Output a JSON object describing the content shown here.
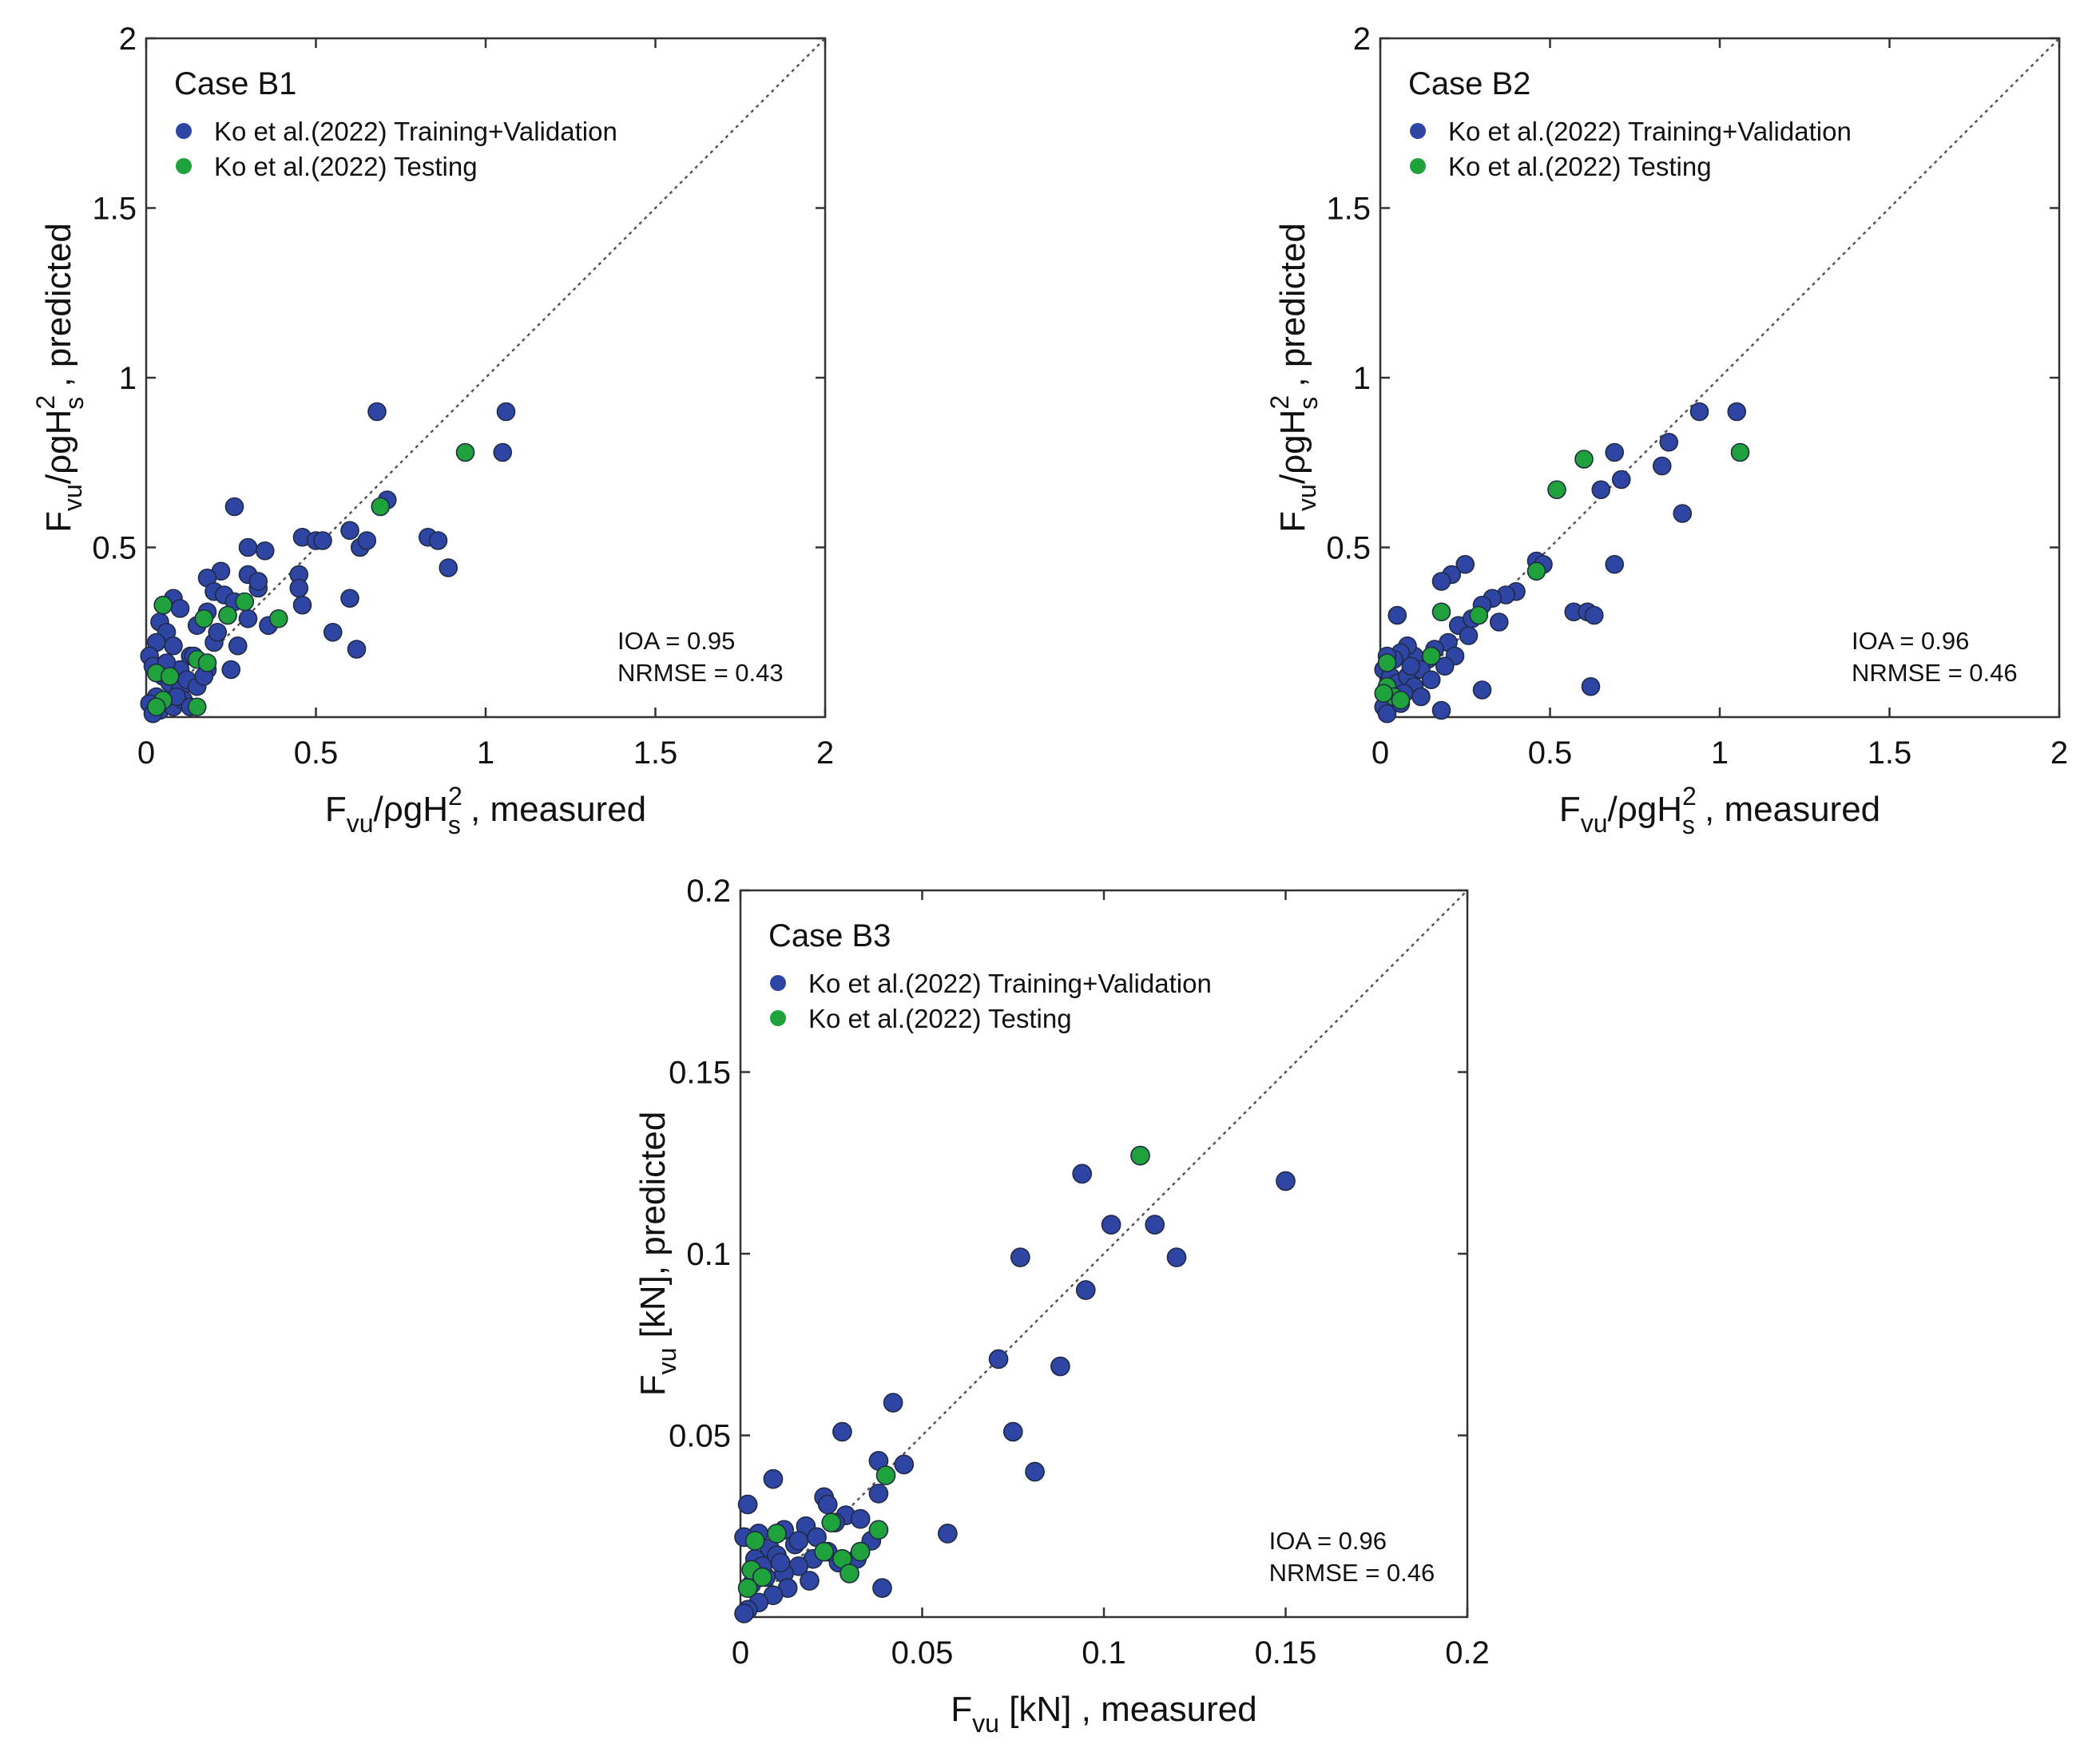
{
  "colors": {
    "training": "#2f45a3",
    "testing": "#1fa23c",
    "marker_edge": "#1f2a44",
    "axis": "#333333",
    "diagonal": "#555555"
  },
  "legend_labels": {
    "training": "Ko et al.(2022) Training+Validation",
    "testing": "Ko et al.(2022) Testing"
  },
  "chart_data": [
    {
      "type": "scatter",
      "title": "Case B1",
      "xlabel": {
        "main": "F",
        "sub": "vu",
        "mid": "/ρgH",
        "sup": "2",
        "sub2": "s",
        "tail": " , measured"
      },
      "ylabel": {
        "main": "F",
        "sub": "vu",
        "mid": "/ρgH",
        "sup": "2",
        "sub2": "s",
        "tail": " , predicted"
      },
      "xlim": [
        0,
        2
      ],
      "ylim": [
        0,
        2
      ],
      "xticks": [
        "0",
        "0.5",
        "1",
        "1.5",
        "2"
      ],
      "yticks": [
        "0.5",
        "1",
        "1.5",
        "2"
      ],
      "ytick_values": [
        0.5,
        1,
        1.5,
        2
      ],
      "xtick_values": [
        0,
        0.5,
        1,
        1.5,
        2
      ],
      "diagonal": true,
      "legend_position": "top-left",
      "stats": [
        "IOA = 0.95",
        "NRMSE = 0.43"
      ],
      "series": [
        {
          "name": "Ko et al.(2022) Training+Validation",
          "points": [
            [
              0.68,
              0.9
            ],
            [
              1.06,
              0.9
            ],
            [
              1.05,
              0.78
            ],
            [
              0.26,
              0.62
            ],
            [
              0.71,
              0.64
            ],
            [
              0.83,
              0.53
            ],
            [
              0.86,
              0.52
            ],
            [
              0.89,
              0.44
            ],
            [
              0.46,
              0.53
            ],
            [
              0.5,
              0.52
            ],
            [
              0.52,
              0.52
            ],
            [
              0.6,
              0.55
            ],
            [
              0.63,
              0.5
            ],
            [
              0.65,
              0.52
            ],
            [
              0.3,
              0.5
            ],
            [
              0.35,
              0.49
            ],
            [
              0.22,
              0.43
            ],
            [
              0.18,
              0.41
            ],
            [
              0.3,
              0.42
            ],
            [
              0.33,
              0.38
            ],
            [
              0.2,
              0.37
            ],
            [
              0.23,
              0.36
            ],
            [
              0.45,
              0.42
            ],
            [
              0.45,
              0.38
            ],
            [
              0.6,
              0.35
            ],
            [
              0.55,
              0.25
            ],
            [
              0.62,
              0.2
            ],
            [
              0.46,
              0.33
            ],
            [
              0.36,
              0.27
            ],
            [
              0.08,
              0.35
            ],
            [
              0.05,
              0.33
            ],
            [
              0.1,
              0.32
            ],
            [
              0.04,
              0.28
            ],
            [
              0.06,
              0.25
            ],
            [
              0.15,
              0.27
            ],
            [
              0.2,
              0.22
            ],
            [
              0.27,
              0.21
            ],
            [
              0.3,
              0.29
            ],
            [
              0.25,
              0.14
            ],
            [
              0.18,
              0.14
            ],
            [
              0.13,
              0.18
            ],
            [
              0.1,
              0.14
            ],
            [
              0.08,
              0.21
            ],
            [
              0.03,
              0.22
            ],
            [
              0.01,
              0.18
            ],
            [
              0.02,
              0.15
            ],
            [
              0.05,
              0.12
            ],
            [
              0.07,
              0.1
            ],
            [
              0.1,
              0.08
            ],
            [
              0.12,
              0.11
            ],
            [
              0.15,
              0.09
            ],
            [
              0.03,
              0.06
            ],
            [
              0.01,
              0.04
            ],
            [
              0.04,
              0.02
            ],
            [
              0.08,
              0.03
            ],
            [
              0.02,
              0.01
            ],
            [
              0.11,
              0.05
            ],
            [
              0.06,
              0.16
            ],
            [
              0.14,
              0.18
            ],
            [
              0.18,
              0.31
            ],
            [
              0.24,
              0.3
            ],
            [
              0.26,
              0.34
            ],
            [
              0.33,
              0.4
            ],
            [
              0.09,
              0.06
            ],
            [
              0.13,
              0.03
            ],
            [
              0.17,
              0.12
            ],
            [
              0.21,
              0.25
            ]
          ]
        },
        {
          "name": "Ko et al.(2022) Testing",
          "points": [
            [
              0.94,
              0.78
            ],
            [
              0.69,
              0.62
            ],
            [
              0.05,
              0.33
            ],
            [
              0.17,
              0.29
            ],
            [
              0.24,
              0.3
            ],
            [
              0.29,
              0.34
            ],
            [
              0.39,
              0.29
            ],
            [
              0.15,
              0.17
            ],
            [
              0.18,
              0.16
            ],
            [
              0.03,
              0.13
            ],
            [
              0.07,
              0.12
            ],
            [
              0.05,
              0.05
            ],
            [
              0.03,
              0.03
            ],
            [
              0.15,
              0.03
            ]
          ]
        }
      ]
    },
    {
      "type": "scatter",
      "title": "Case B2",
      "xlabel": {
        "main": "F",
        "sub": "vu",
        "mid": "/ρgH",
        "sup": "2",
        "sub2": "s",
        "tail": " , measured"
      },
      "ylabel": {
        "main": "F",
        "sub": "vu",
        "mid": "/ρgH",
        "sup": "2",
        "sub2": "s",
        "tail": " , predicted"
      },
      "xlim": [
        0,
        2
      ],
      "ylim": [
        0,
        2
      ],
      "xticks": [
        "0",
        "0.5",
        "1",
        "1.5",
        "2"
      ],
      "yticks": [
        "0.5",
        "1",
        "1.5",
        "2"
      ],
      "ytick_values": [
        0.5,
        1,
        1.5,
        2
      ],
      "xtick_values": [
        0,
        0.5,
        1,
        1.5,
        2
      ],
      "diagonal": true,
      "legend_position": "top-left",
      "stats": [
        "IOA = 0.96",
        "NRMSE = 0.46"
      ],
      "series": [
        {
          "name": "Ko et al.(2022) Training+Validation",
          "points": [
            [
              0.94,
              0.9
            ],
            [
              1.05,
              0.9
            ],
            [
              0.85,
              0.81
            ],
            [
              0.69,
              0.78
            ],
            [
              0.83,
              0.74
            ],
            [
              0.71,
              0.7
            ],
            [
              0.65,
              0.67
            ],
            [
              0.89,
              0.6
            ],
            [
              0.46,
              0.46
            ],
            [
              0.48,
              0.45
            ],
            [
              0.69,
              0.45
            ],
            [
              0.25,
              0.45
            ],
            [
              0.21,
              0.42
            ],
            [
              0.18,
              0.4
            ],
            [
              0.4,
              0.37
            ],
            [
              0.37,
              0.36
            ],
            [
              0.33,
              0.35
            ],
            [
              0.3,
              0.33
            ],
            [
              0.35,
              0.28
            ],
            [
              0.57,
              0.31
            ],
            [
              0.61,
              0.31
            ],
            [
              0.63,
              0.3
            ],
            [
              0.62,
              0.09
            ],
            [
              0.3,
              0.08
            ],
            [
              0.18,
              0.02
            ],
            [
              0.05,
              0.3
            ],
            [
              0.23,
              0.27
            ],
            [
              0.26,
              0.24
            ],
            [
              0.2,
              0.22
            ],
            [
              0.22,
              0.18
            ],
            [
              0.16,
              0.2
            ],
            [
              0.14,
              0.17
            ],
            [
              0.1,
              0.18
            ],
            [
              0.08,
              0.21
            ],
            [
              0.06,
              0.19
            ],
            [
              0.04,
              0.17
            ],
            [
              0.02,
              0.18
            ],
            [
              0.01,
              0.14
            ],
            [
              0.03,
              0.12
            ],
            [
              0.05,
              0.1
            ],
            [
              0.08,
              0.12
            ],
            [
              0.1,
              0.09
            ],
            [
              0.12,
              0.14
            ],
            [
              0.15,
              0.11
            ],
            [
              0.07,
              0.07
            ],
            [
              0.03,
              0.05
            ],
            [
              0.01,
              0.03
            ],
            [
              0.02,
              0.01
            ],
            [
              0.06,
              0.04
            ],
            [
              0.09,
              0.15
            ],
            [
              0.12,
              0.06
            ],
            [
              0.19,
              0.15
            ],
            [
              0.27,
              0.29
            ]
          ]
        },
        {
          "name": "Ko et al.(2022) Testing",
          "points": [
            [
              1.06,
              0.78
            ],
            [
              0.6,
              0.76
            ],
            [
              0.52,
              0.67
            ],
            [
              0.46,
              0.43
            ],
            [
              0.18,
              0.31
            ],
            [
              0.29,
              0.3
            ],
            [
              0.15,
              0.18
            ],
            [
              0.02,
              0.16
            ],
            [
              0.02,
              0.09
            ],
            [
              0.04,
              0.06
            ],
            [
              0.06,
              0.05
            ],
            [
              0.01,
              0.07
            ]
          ]
        }
      ]
    },
    {
      "type": "scatter",
      "title": "Case B3",
      "xlabel": {
        "main": "F",
        "sub": "vu",
        "mid": " [kN]",
        "sup": "",
        "sub2": "",
        "tail": " , measured"
      },
      "ylabel": {
        "main": "F",
        "sub": "vu",
        "mid": " [kN], predicted",
        "sup": "",
        "sub2": "",
        "tail": ""
      },
      "xlim": [
        0,
        0.2
      ],
      "ylim": [
        0,
        0.2
      ],
      "xticks": [
        "0",
        "0.05",
        "0.1",
        "0.15",
        "0.2"
      ],
      "yticks": [
        "0.05",
        "0.1",
        "0.15",
        "0.2"
      ],
      "ytick_values": [
        0.05,
        0.1,
        0.15,
        0.2
      ],
      "xtick_values": [
        0,
        0.05,
        0.1,
        0.15,
        0.2
      ],
      "diagonal": true,
      "legend_position": "top-left",
      "stats": [
        "IOA = 0.96",
        "NRMSE = 0.46"
      ],
      "series": [
        {
          "name": "Ko et al.(2022) Training+Validation",
          "points": [
            [
              0.094,
              0.122
            ],
            [
              0.15,
              0.12
            ],
            [
              0.102,
              0.108
            ],
            [
              0.114,
              0.108
            ],
            [
              0.077,
              0.099
            ],
            [
              0.12,
              0.099
            ],
            [
              0.095,
              0.09
            ],
            [
              0.071,
              0.071
            ],
            [
              0.088,
              0.069
            ],
            [
              0.042,
              0.059
            ],
            [
              0.028,
              0.051
            ],
            [
              0.075,
              0.051
            ],
            [
              0.057,
              0.023
            ],
            [
              0.038,
              0.043
            ],
            [
              0.045,
              0.042
            ],
            [
              0.081,
              0.04
            ],
            [
              0.009,
              0.038
            ],
            [
              0.038,
              0.034
            ],
            [
              0.023,
              0.033
            ],
            [
              0.024,
              0.031
            ],
            [
              0.002,
              0.031
            ],
            [
              0.029,
              0.028
            ],
            [
              0.033,
              0.027
            ],
            [
              0.026,
              0.026
            ],
            [
              0.018,
              0.025
            ],
            [
              0.012,
              0.024
            ],
            [
              0.005,
              0.023
            ],
            [
              0.001,
              0.022
            ],
            [
              0.021,
              0.022
            ],
            [
              0.015,
              0.02
            ],
            [
              0.008,
              0.019
            ],
            [
              0.01,
              0.017
            ],
            [
              0.004,
              0.016
            ],
            [
              0.02,
              0.016
            ],
            [
              0.027,
              0.015
            ],
            [
              0.016,
              0.014
            ],
            [
              0.012,
              0.012
            ],
            [
              0.007,
              0.011
            ],
            [
              0.003,
              0.009
            ],
            [
              0.019,
              0.01
            ],
            [
              0.024,
              0.018
            ],
            [
              0.013,
              0.008
            ],
            [
              0.009,
              0.006
            ],
            [
              0.005,
              0.004
            ],
            [
              0.002,
              0.002
            ],
            [
              0.001,
              0.001
            ],
            [
              0.039,
              0.008
            ],
            [
              0.032,
              0.016
            ],
            [
              0.036,
              0.021
            ],
            [
              0.006,
              0.014
            ],
            [
              0.016,
              0.021
            ],
            [
              0.011,
              0.015
            ]
          ]
        },
        {
          "name": "Ko et al.(2022) Testing",
          "points": [
            [
              0.11,
              0.127
            ],
            [
              0.04,
              0.039
            ],
            [
              0.025,
              0.026
            ],
            [
              0.038,
              0.024
            ],
            [
              0.01,
              0.023
            ],
            [
              0.004,
              0.021
            ],
            [
              0.023,
              0.018
            ],
            [
              0.033,
              0.018
            ],
            [
              0.028,
              0.016
            ],
            [
              0.003,
              0.013
            ],
            [
              0.006,
              0.011
            ],
            [
              0.03,
              0.012
            ],
            [
              0.002,
              0.008
            ]
          ]
        }
      ]
    }
  ]
}
